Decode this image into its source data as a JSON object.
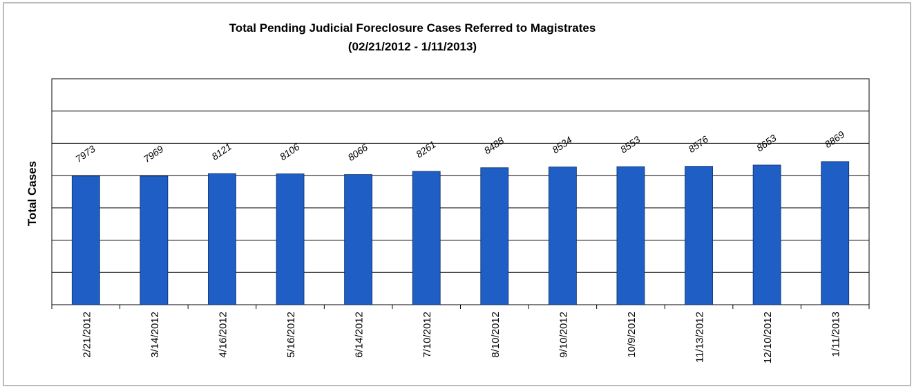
{
  "chart_data": {
    "type": "bar",
    "title": "Total Pending Judicial Foreclosure Cases Referred to Magistrates",
    "subtitle": "(02/21/2012  - 1/11/2013)",
    "y_label": "Total Cases",
    "categories": [
      "2/21/2012",
      "3/14/2012",
      "4/16/2012",
      "5/16/2012",
      "6/14/2012",
      "7/10/2012",
      "8/10/2012",
      "9/10/2012",
      "10/9/2012",
      "11/13/2012",
      "12/10/2012",
      "1/11/2013"
    ],
    "values": [
      7973,
      7969,
      8121,
      8106,
      8066,
      8261,
      8488,
      8534,
      8553,
      8576,
      8653,
      8869
    ],
    "color": "#1f5ec4",
    "ylim": [
      0,
      14000
    ],
    "yticks": [
      0,
      2000,
      4000,
      6000,
      8000,
      10000,
      12000,
      14000
    ],
    "grid": true
  }
}
